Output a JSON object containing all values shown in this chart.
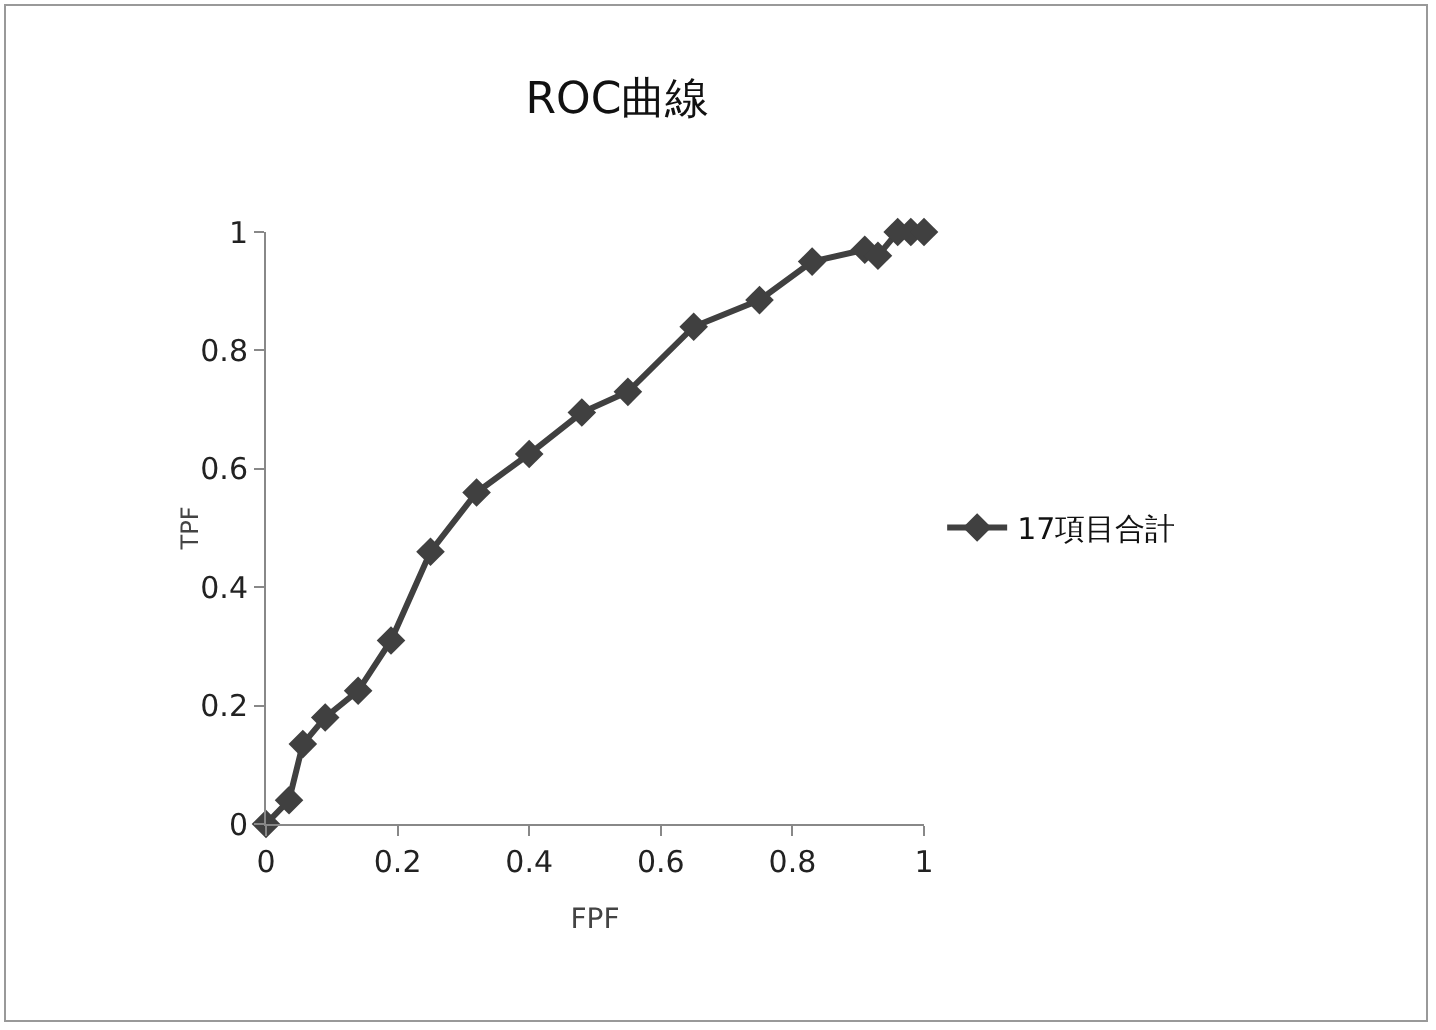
{
  "chart_data": {
    "type": "line",
    "title": "ROC曲線",
    "xlabel": "FPF",
    "ylabel": "TPF",
    "series": [
      {
        "name": "17項目合計",
        "color": "#404040",
        "x": [
          0,
          0.035,
          0.056,
          0.09,
          0.14,
          0.19,
          0.25,
          0.32,
          0.4,
          0.48,
          0.55,
          0.65,
          0.75,
          0.83,
          0.91,
          0.93,
          0.96,
          0.98,
          1
        ],
        "values": [
          0,
          0.04,
          0.135,
          0.18,
          0.225,
          0.31,
          0.46,
          0.56,
          0.625,
          0.695,
          0.73,
          0.84,
          0.885,
          0.95,
          0.97,
          0.96,
          1,
          1,
          1
        ]
      }
    ],
    "xlim": [
      0,
      1
    ],
    "xticks": [
      0,
      0.2,
      0.4,
      0.6,
      0.8,
      1
    ],
    "ylim": [
      0,
      1
    ],
    "yticks": [
      0,
      0.2,
      0.4,
      0.6,
      0.8,
      1
    ],
    "grid": false,
    "legend": "right",
    "marker": "diamond",
    "line_style": "solid"
  }
}
